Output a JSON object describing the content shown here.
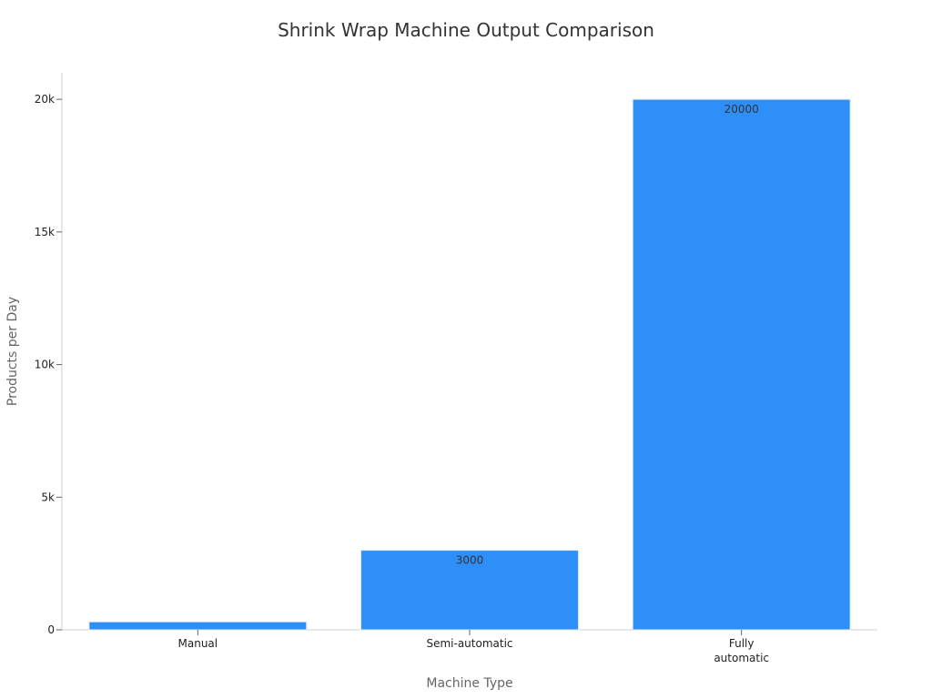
{
  "chart_data": {
    "type": "bar",
    "title": "Shrink Wrap Machine Output Comparison",
    "xlabel": "Machine Type",
    "ylabel": "Products per Day",
    "categories": [
      [
        "Manual"
      ],
      [
        "Semi-automatic"
      ],
      [
        "Fully",
        "automatic"
      ]
    ],
    "values": [
      300,
      3000,
      20000
    ],
    "data_labels": [
      "",
      "3000",
      "20000"
    ],
    "ylim": [
      0,
      21000
    ],
    "yticks": [
      0,
      5000,
      10000,
      15000,
      20000
    ],
    "ytick_labels": [
      "0",
      "5k",
      "10k",
      "15k",
      "20k"
    ],
    "grid": false,
    "legend": "none",
    "colors": {
      "bar": "#2f8ff8",
      "bar_edge": "#dfe8f5",
      "axis": "#d0d0d0",
      "tick": "#666666",
      "title": "#333333"
    }
  }
}
